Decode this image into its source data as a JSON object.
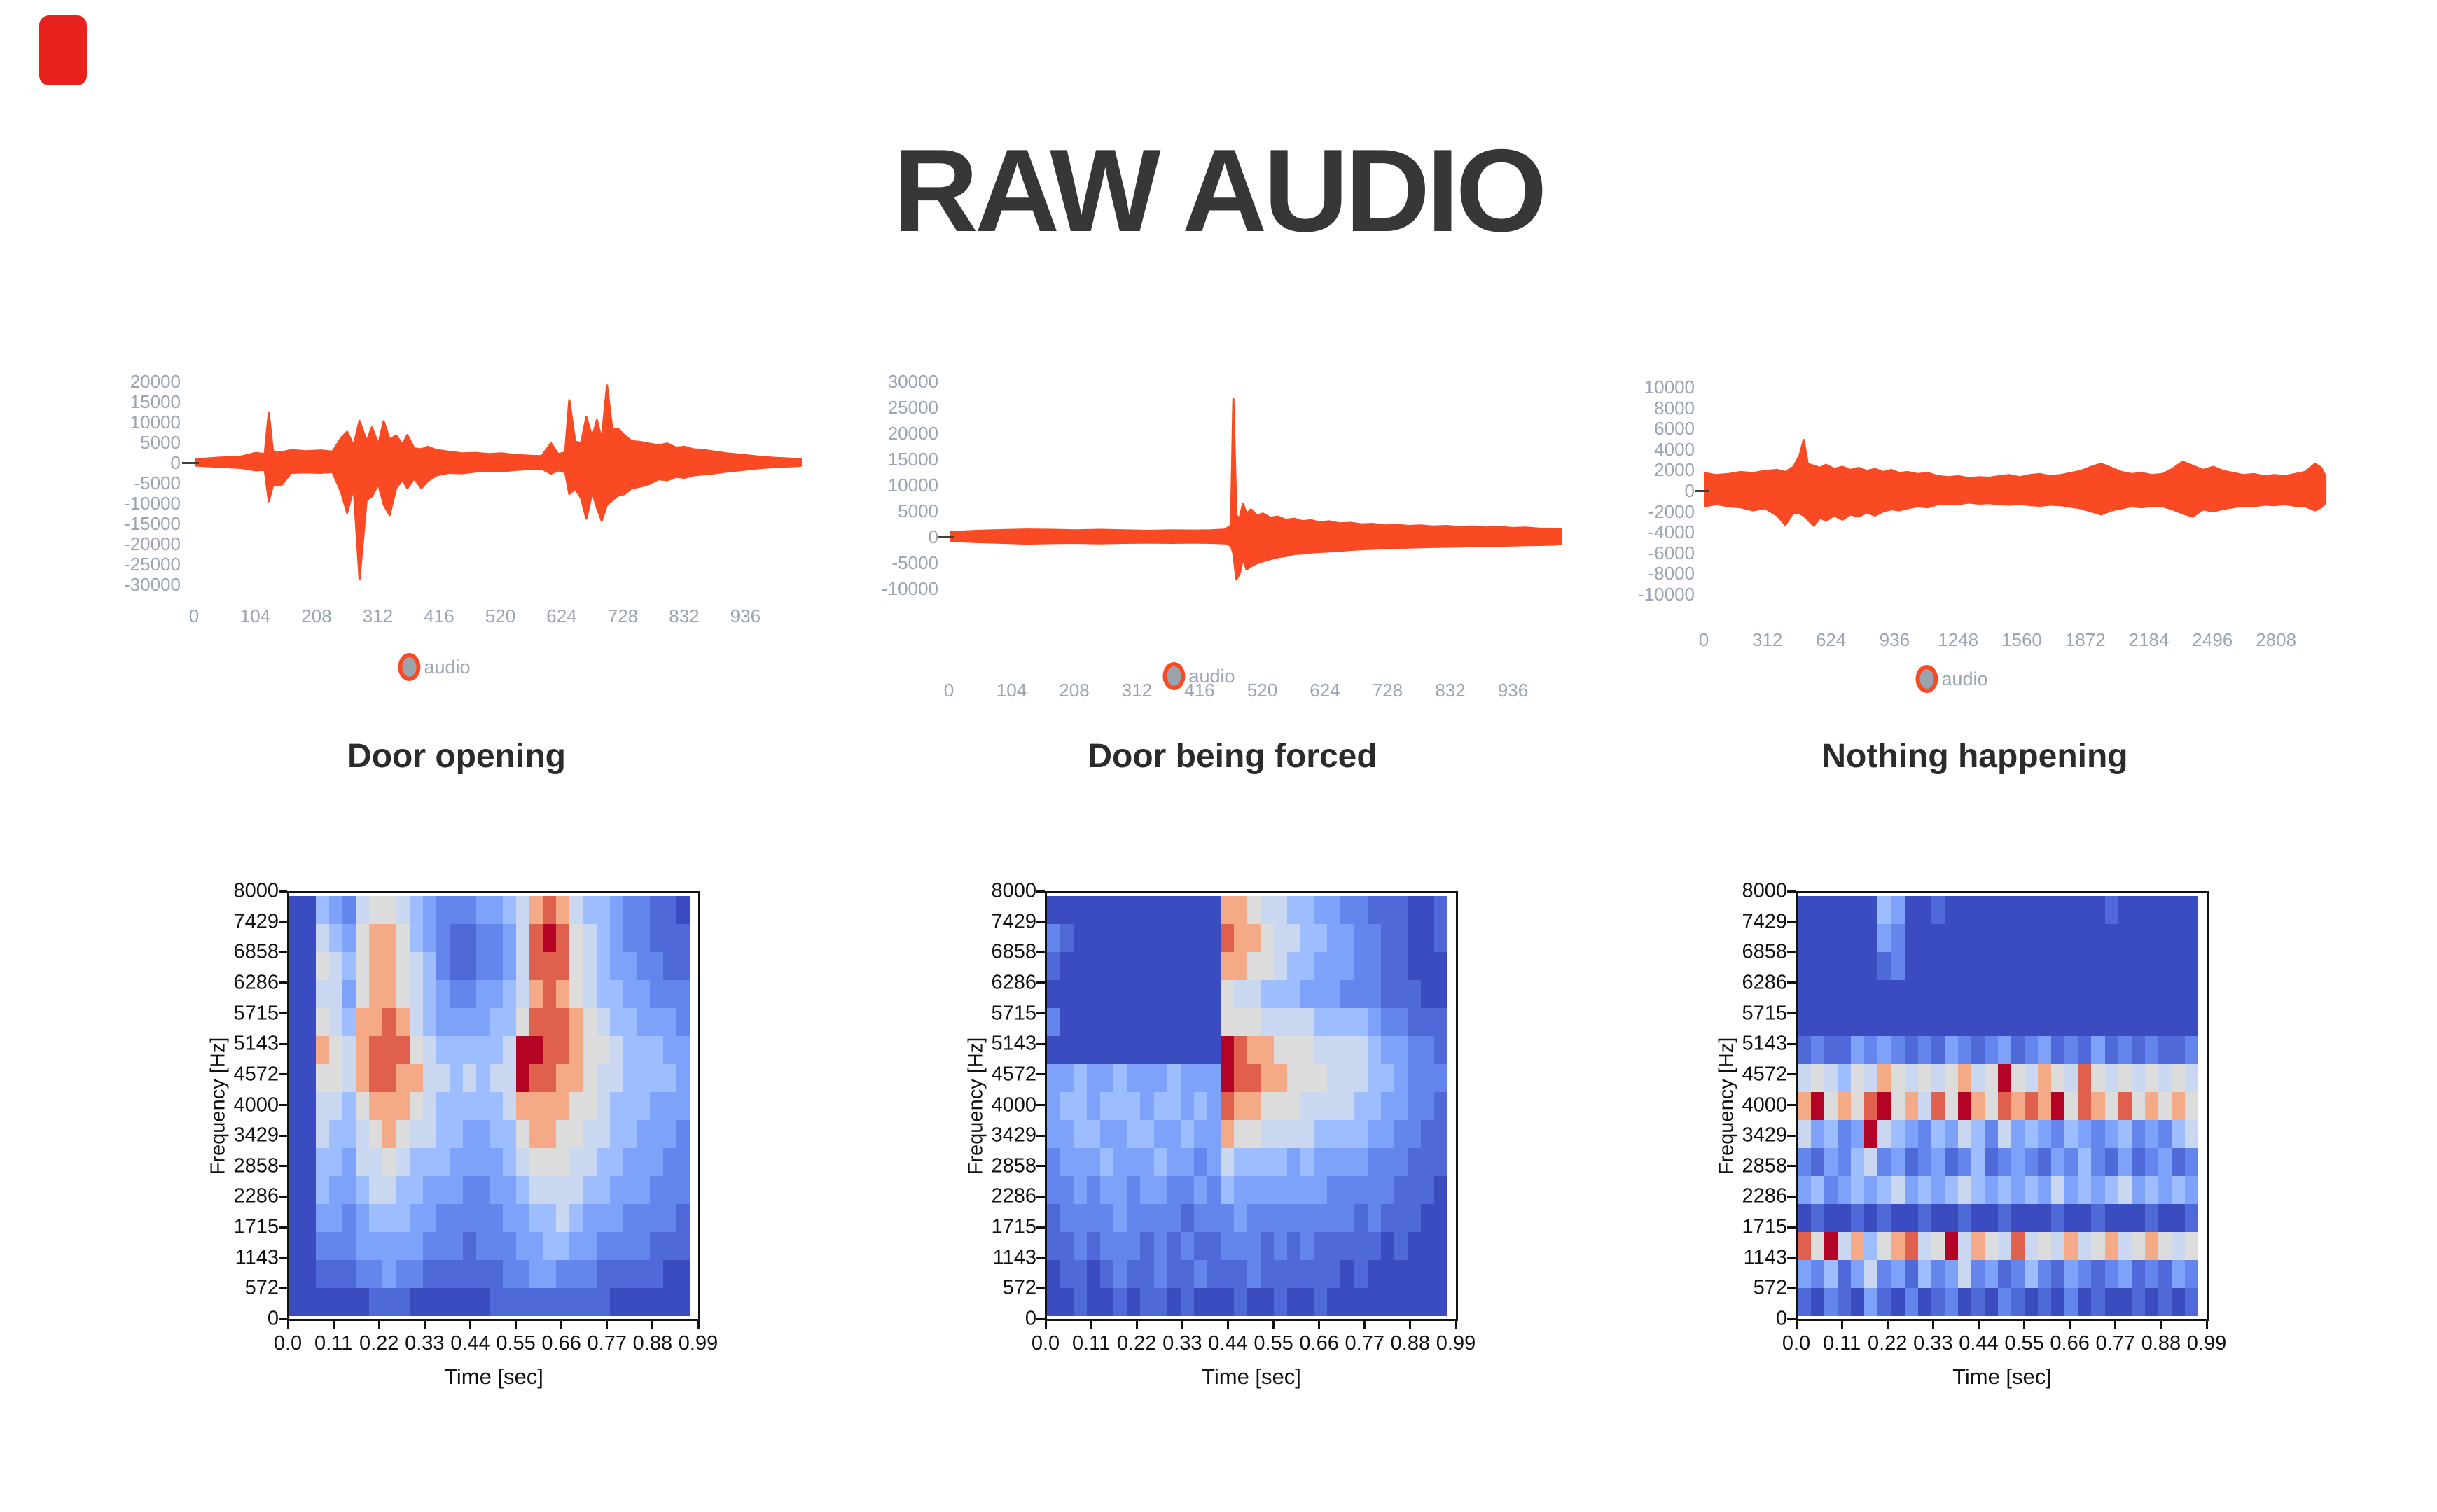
{
  "title": "RAW AUDIO",
  "accent_mark_color": "#e8231f",
  "colors": {
    "title_text": "#373737",
    "caption_text": "#2b2b2b",
    "waveform_line": "#fa4a24",
    "waveform_tick_label": "#9aa5b1",
    "zero_line": "#3f3f3f",
    "legend_marker_ring": "#fa4a24",
    "legend_marker_fill": "#9aa3ae",
    "spectrogram_axis_text": "#111111"
  },
  "chart_data": [
    {
      "id": "waveform-door-opening",
      "type": "line",
      "title": "Door opening",
      "legend": "audio",
      "x_ticks": [
        0,
        104,
        208,
        312,
        416,
        520,
        624,
        728,
        832,
        936
      ],
      "y_ticks": [
        20000,
        15000,
        10000,
        5000,
        0,
        -5000,
        -10000,
        -15000,
        -20000,
        -25000,
        -30000
      ],
      "xlim": [
        0,
        1030
      ],
      "ylim": [
        -32000,
        22000
      ],
      "envelope": [
        [
          3,
          800,
          -700
        ],
        [
          40,
          1200,
          -1000
        ],
        [
          80,
          1500,
          -1300
        ],
        [
          105,
          2400,
          -1900
        ],
        [
          120,
          2100,
          -1700
        ],
        [
          127,
          12300,
          -9500
        ],
        [
          134,
          2800,
          -5600
        ],
        [
          148,
          2500,
          -5600
        ],
        [
          165,
          3100,
          -2500
        ],
        [
          190,
          2800,
          -2400
        ],
        [
          215,
          3000,
          -2500
        ],
        [
          235,
          2700,
          -2300
        ],
        [
          250,
          6100,
          -7300
        ],
        [
          260,
          7600,
          -12400
        ],
        [
          271,
          4200,
          -6200
        ],
        [
          281,
          10300,
          -28600
        ],
        [
          293,
          5200,
          -9200
        ],
        [
          302,
          8700,
          -8300
        ],
        [
          313,
          4500,
          -5300
        ],
        [
          322,
          10200,
          -10300
        ],
        [
          332,
          5700,
          -12900
        ],
        [
          343,
          6700,
          -6300
        ],
        [
          354,
          4500,
          -4300
        ],
        [
          362,
          6800,
          -6300
        ],
        [
          374,
          3500,
          -3900
        ],
        [
          386,
          3300,
          -6300
        ],
        [
          397,
          3900,
          -4500
        ],
        [
          412,
          3100,
          -3100
        ],
        [
          432,
          2700,
          -2500
        ],
        [
          455,
          2300,
          -2600
        ],
        [
          478,
          2400,
          -2200
        ],
        [
          500,
          2100,
          -2000
        ],
        [
          522,
          2300,
          -2100
        ],
        [
          545,
          1900,
          -1800
        ],
        [
          568,
          1700,
          -1600
        ],
        [
          590,
          1600,
          -1500
        ],
        [
          606,
          4800,
          -2700
        ],
        [
          618,
          2100,
          -1900
        ],
        [
          630,
          2500,
          -2300
        ],
        [
          637,
          15400,
          -7700
        ],
        [
          647,
          5200,
          -6400
        ],
        [
          657,
          4800,
          -8700
        ],
        [
          666,
          11200,
          -13800
        ],
        [
          676,
          6200,
          -7200
        ],
        [
          684,
          10500,
          -11100
        ],
        [
          692,
          5600,
          -14300
        ],
        [
          701,
          19000,
          -10300
        ],
        [
          710,
          8200,
          -9300
        ],
        [
          720,
          8300,
          -8100
        ],
        [
          731,
          6700,
          -7700
        ],
        [
          743,
          5300,
          -6300
        ],
        [
          757,
          5100,
          -5900
        ],
        [
          772,
          4700,
          -5300
        ],
        [
          788,
          4300,
          -4100
        ],
        [
          804,
          4700,
          -4300
        ],
        [
          818,
          3700,
          -3500
        ],
        [
          833,
          3900,
          -3700
        ],
        [
          848,
          3300,
          -3100
        ],
        [
          864,
          3100,
          -2900
        ],
        [
          884,
          2700,
          -2600
        ],
        [
          904,
          2300,
          -2200
        ],
        [
          924,
          2000,
          -1900
        ],
        [
          944,
          1700,
          -1600
        ],
        [
          964,
          1400,
          -1300
        ],
        [
          988,
          1150,
          -1050
        ],
        [
          1012,
          1000,
          -900
        ],
        [
          1030,
          850,
          -780
        ]
      ]
    },
    {
      "id": "waveform-door-being-forced",
      "type": "line",
      "title": "Door being forced",
      "legend": "audio",
      "x_ticks": [
        0,
        104,
        208,
        312,
        416,
        520,
        624,
        728,
        832,
        936
      ],
      "y_ticks": [
        30000,
        25000,
        20000,
        15000,
        10000,
        5000,
        0,
        -5000,
        -10000
      ],
      "xlim": [
        0,
        1016
      ],
      "ylim": [
        -12000,
        32000
      ],
      "envelope": [
        [
          4,
          900,
          -800
        ],
        [
          45,
          1150,
          -1000
        ],
        [
          90,
          1300,
          -1150
        ],
        [
          130,
          1400,
          -1300
        ],
        [
          170,
          1350,
          -1200
        ],
        [
          210,
          1250,
          -1150
        ],
        [
          250,
          1350,
          -1250
        ],
        [
          290,
          1250,
          -1150
        ],
        [
          330,
          1150,
          -1100
        ],
        [
          370,
          1250,
          -1150
        ],
        [
          405,
          1200,
          -1100
        ],
        [
          435,
          1250,
          -1150
        ],
        [
          458,
          1400,
          -1250
        ],
        [
          468,
          2200,
          -1700
        ],
        [
          472,
          26600,
          -3200
        ],
        [
          477,
          4200,
          -8200
        ],
        [
          482,
          3400,
          -7200
        ],
        [
          488,
          6400,
          -4200
        ],
        [
          494,
          4400,
          -6300
        ],
        [
          501,
          5300,
          -5700
        ],
        [
          511,
          4100,
          -5100
        ],
        [
          521,
          4500,
          -4700
        ],
        [
          533,
          3700,
          -4300
        ],
        [
          546,
          3900,
          -3900
        ],
        [
          559,
          3300,
          -3700
        ],
        [
          573,
          3500,
          -3300
        ],
        [
          587,
          3000,
          -3200
        ],
        [
          601,
          3200,
          -3000
        ],
        [
          616,
          2800,
          -2900
        ],
        [
          631,
          3000,
          -2800
        ],
        [
          649,
          2600,
          -2700
        ],
        [
          667,
          2700,
          -2500
        ],
        [
          685,
          2400,
          -2400
        ],
        [
          703,
          2500,
          -2300
        ],
        [
          723,
          2200,
          -2200
        ],
        [
          743,
          2300,
          -2100
        ],
        [
          763,
          2100,
          -2050
        ],
        [
          783,
          2200,
          -2000
        ],
        [
          803,
          2000,
          -1950
        ],
        [
          825,
          2100,
          -1900
        ],
        [
          847,
          1900,
          -1850
        ],
        [
          869,
          2000,
          -1800
        ],
        [
          891,
          1800,
          -1750
        ],
        [
          913,
          1900,
          -1700
        ],
        [
          935,
          1700,
          -1650
        ],
        [
          957,
          1800,
          -1600
        ],
        [
          979,
          1600,
          -1550
        ],
        [
          1001,
          1550,
          -1500
        ],
        [
          1016,
          1450,
          -1400
        ]
      ]
    },
    {
      "id": "waveform-nothing-happening",
      "type": "line",
      "title": "Nothing happening",
      "legend": "audio",
      "x_ticks": [
        0,
        312,
        624,
        936,
        1248,
        1560,
        1872,
        2184,
        2496,
        2808
      ],
      "y_ticks": [
        10000,
        8000,
        6000,
        4000,
        2000,
        0,
        -2000,
        -4000,
        -6000,
        -8000,
        -10000
      ],
      "xlim": [
        0,
        3050
      ],
      "ylim": [
        -11000,
        11000
      ],
      "envelope": [
        [
          5,
          1700,
          -1500
        ],
        [
          60,
          1500,
          -1300
        ],
        [
          120,
          1600,
          -1500
        ],
        [
          180,
          1800,
          -1600
        ],
        [
          240,
          1700,
          -1900
        ],
        [
          300,
          1900,
          -1700
        ],
        [
          360,
          2000,
          -2400
        ],
        [
          400,
          1800,
          -3300
        ],
        [
          440,
          2300,
          -2100
        ],
        [
          470,
          3400,
          -2200
        ],
        [
          490,
          4900,
          -2400
        ],
        [
          510,
          2600,
          -2800
        ],
        [
          540,
          2400,
          -3400
        ],
        [
          570,
          2200,
          -2600
        ],
        [
          600,
          2500,
          -2900
        ],
        [
          640,
          2100,
          -2400
        ],
        [
          680,
          2300,
          -2800
        ],
        [
          720,
          2000,
          -2300
        ],
        [
          760,
          2200,
          -2500
        ],
        [
          800,
          1900,
          -2100
        ],
        [
          840,
          2100,
          -2400
        ],
        [
          880,
          1800,
          -2000
        ],
        [
          920,
          2000,
          -1800
        ],
        [
          960,
          1700,
          -1900
        ],
        [
          1000,
          1800,
          -1700
        ],
        [
          1050,
          1600,
          -1500
        ],
        [
          1100,
          1700,
          -1600
        ],
        [
          1150,
          1400,
          -1300
        ],
        [
          1200,
          1300,
          -1250
        ],
        [
          1250,
          1400,
          -1300
        ],
        [
          1300,
          1200,
          -1150
        ],
        [
          1350,
          1300,
          -1250
        ],
        [
          1400,
          1250,
          -1200
        ],
        [
          1450,
          1400,
          -1300
        ],
        [
          1500,
          1500,
          -1350
        ],
        [
          1550,
          1300,
          -1250
        ],
        [
          1600,
          1500,
          -1400
        ],
        [
          1650,
          1600,
          -1450
        ],
        [
          1700,
          1400,
          -1350
        ],
        [
          1750,
          1500,
          -1400
        ],
        [
          1800,
          1700,
          -1550
        ],
        [
          1850,
          1900,
          -1700
        ],
        [
          1900,
          2300,
          -2000
        ],
        [
          1950,
          2600,
          -2300
        ],
        [
          2000,
          2200,
          -1900
        ],
        [
          2050,
          1800,
          -1700
        ],
        [
          2100,
          1600,
          -1500
        ],
        [
          2150,
          1700,
          -1600
        ],
        [
          2200,
          1500,
          -1450
        ],
        [
          2250,
          1600,
          -1500
        ],
        [
          2300,
          2100,
          -1800
        ],
        [
          2350,
          2800,
          -2200
        ],
        [
          2400,
          2400,
          -2500
        ],
        [
          2450,
          2000,
          -1800
        ],
        [
          2500,
          2300,
          -2000
        ],
        [
          2550,
          1900,
          -1750
        ],
        [
          2600,
          1700,
          -1600
        ],
        [
          2650,
          1500,
          -1450
        ],
        [
          2700,
          1600,
          -1500
        ],
        [
          2750,
          1400,
          -1350
        ],
        [
          2800,
          1500,
          -1400
        ],
        [
          2850,
          1400,
          -1300
        ],
        [
          2900,
          1600,
          -1450
        ],
        [
          2950,
          1800,
          -1500
        ],
        [
          3000,
          2600,
          -1900
        ],
        [
          3030,
          2200,
          -1600
        ],
        [
          3050,
          1400,
          -1200
        ]
      ]
    },
    {
      "id": "spectrogram-door-opening",
      "type": "heatmap",
      "xlabel": "Time [sec]",
      "ylabel": "Frequency [Hz]",
      "x_ticks": [
        "0.0",
        "0.11",
        "0.22",
        "0.33",
        "0.44",
        "0.55",
        "0.66",
        "0.77",
        "0.88",
        "0.99"
      ],
      "y_ticks": [
        8000,
        7429,
        6858,
        6286,
        5715,
        5143,
        4572,
        4000,
        3429,
        2858,
        2286,
        1715,
        1143,
        572,
        0
      ],
      "palette": [
        "#3b4cc0",
        "#4f69d9",
        "#6485eb",
        "#7ea1f9",
        "#9dbdff",
        "#c9d7f0",
        "#dddcdc",
        "#f4a987",
        "#df604c",
        "#b40426"
      ],
      "rows": [
        "004325665432223345787544322110",
        "005436776432112235898654322111",
        "006546776542112235888654332211",
        "005536776543223345787654433222",
        "006547787543333446888765443332",
        "007657888654444459988766544433",
        "006657887755454559887765544443",
        "005546777654444457777665444333",
        "005445676554433446776655443332",
        "004435565444333345666554433322",
        "004334554433322334555544333222",
        "003323444332222233445433322221",
        "002223333322212223344332222111",
        "001112232211111122332221111100",
        "000000111000000111111111000000"
      ]
    },
    {
      "id": "spectrogram-door-being-forced",
      "type": "heatmap",
      "xlabel": "Time [sec]",
      "ylabel": "Frequency [Hz]",
      "x_ticks": [
        "0.0",
        "0.11",
        "0.22",
        "0.33",
        "0.44",
        "0.55",
        "0.66",
        "0.77",
        "0.88",
        "0.99"
      ],
      "y_ticks": [
        8000,
        7429,
        6858,
        6286,
        5715,
        5143,
        4572,
        4000,
        3429,
        2858,
        2286,
        1715,
        1143,
        572,
        0
      ],
      "palette": [
        "#3b4cc0",
        "#4f69d9",
        "#6485eb",
        "#7ea1f9",
        "#9dbdff",
        "#c9d7f0",
        "#dddcdc",
        "#f4a987",
        "#df604c",
        "#b40426"
      ],
      "rows": [
        "000000000000077655443322111001",
        "210000000000087765544332211001",
        "100000000000077665443332211000",
        "000000000000065544433322211100",
        "200000000000066655554444322111",
        "000000000000098776665555433221",
        "334334333433398877666555443222",
        "344344434434387766655554433221",
        "334433443343376655554444332211",
        "233343334332354444343333222111",
        "223233233223243333333222221110",
        "122223222212223222222221211100",
        "112122212121122212121111101000",
        "011012112112111211111101000000",
        "001001011010001001001000000000"
      ]
    },
    {
      "id": "spectrogram-nothing-happening",
      "type": "heatmap",
      "xlabel": "Time [sec]",
      "ylabel": "Frequency [Hz]",
      "x_ticks": [
        "0.0",
        "0.11",
        "0.22",
        "0.33",
        "0.44",
        "0.55",
        "0.66",
        "0.77",
        "0.88",
        "0.99"
      ],
      "y_ticks": [
        8000,
        7429,
        6858,
        6286,
        5715,
        5143,
        4572,
        4000,
        3429,
        2858,
        2286,
        1715,
        1143,
        572,
        0
      ],
      "palette": [
        "#3b4cc0",
        "#4f69d9",
        "#6485eb",
        "#7ea1f9",
        "#9dbdff",
        "#c9d7f0",
        "#dddcdc",
        "#f4a987",
        "#df604c",
        "#b40426"
      ],
      "rows": [
        "000000430010000000000001000000",
        "000000320000000000000000000000",
        "000000120000000000000000000000",
        "000000000000000000000000000000",
        "000000000000000000000000000000",
        "121132321213212312312131212112",
        "565465765656756965765865656565",
        "796768967586976878796876867676",
        "534239543243542534324323423245",
        "213245231231241232132421312312",
        "342343453434543434353434534343",
        "010010100100100100010010001001",
        "869574678569576585657567567656",
        "324135231423523124213212312132",
        "102103102012010210102010010101"
      ]
    }
  ]
}
